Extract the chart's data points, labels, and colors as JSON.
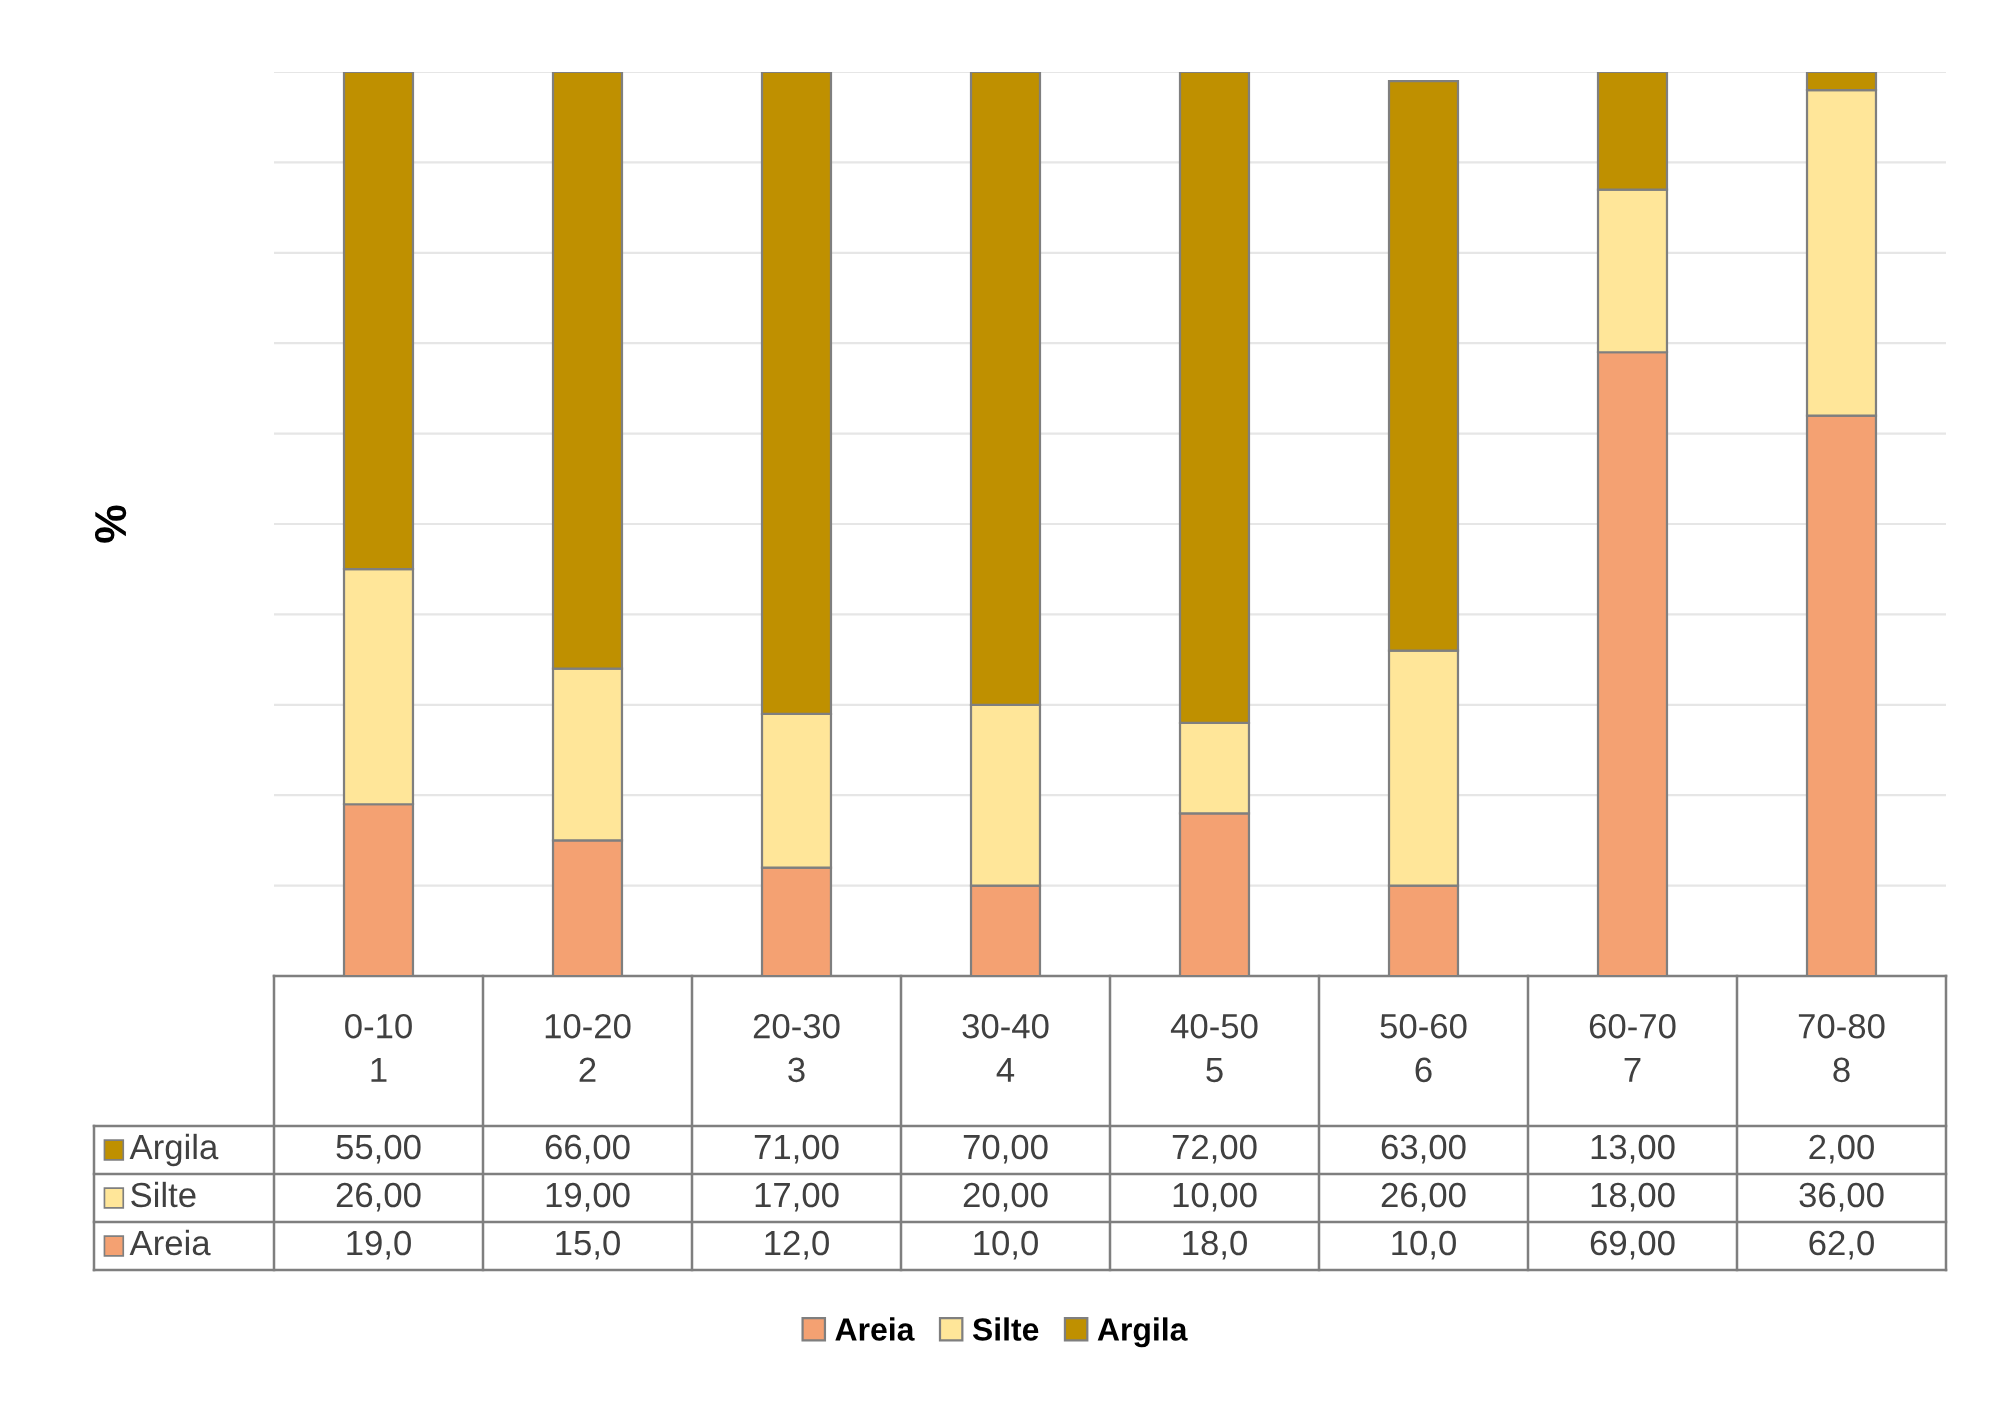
{
  "chart_data": {
    "type": "bar",
    "stacked": true,
    "ylabel": "%",
    "categories": [
      "0-10\n1",
      "10-20\n2",
      "20-30\n3",
      "30-40\n4",
      "40-50\n5",
      "50-60\n6",
      "60-70\n7",
      "70-80\n8"
    ],
    "series": [
      {
        "name": "Areia",
        "color": "#f4a172",
        "values": [
          19.0,
          15.0,
          12.0,
          10.0,
          18.0,
          10.0,
          69.0,
          62.0
        ],
        "value_labels": [
          "19,0",
          "15,0",
          "12,0",
          "10,0",
          "18,0",
          "10,0",
          "69,00",
          "62,0"
        ]
      },
      {
        "name": "Silte",
        "color": "#ffe699",
        "values": [
          26,
          19,
          17,
          20,
          10,
          26,
          18,
          36
        ],
        "value_labels": [
          "26,00",
          "19,00",
          "17,00",
          "20,00",
          "10,00",
          "26,00",
          "18,00",
          "36,00"
        ]
      },
      {
        "name": "Argila",
        "color": "#bf9000",
        "values": [
          55,
          66,
          71,
          70,
          72,
          63,
          13,
          2
        ],
        "value_labels": [
          "55,00",
          "66,00",
          "71,00",
          "70,00",
          "72,00",
          "63,00",
          "13,00",
          "2,00"
        ]
      }
    ],
    "ylim": [
      0,
      100
    ],
    "yticks": [
      {
        "value": 0,
        "label": null
      },
      {
        "value": 10,
        "label": null
      },
      {
        "value": 20,
        "label": null
      },
      {
        "value": 30,
        "label": null
      },
      {
        "value": 40,
        "label": null
      },
      {
        "value": 50,
        "label": null
      },
      {
        "value": 60,
        "label": null
      },
      {
        "value": 70,
        "label": null
      },
      {
        "value": 80,
        "label": null
      },
      {
        "value": 90,
        "label": null
      },
      {
        "value": 100,
        "label": null
      }
    ],
    "grid": "y",
    "legend": "bottom",
    "tick_labels": "x"
  }
}
